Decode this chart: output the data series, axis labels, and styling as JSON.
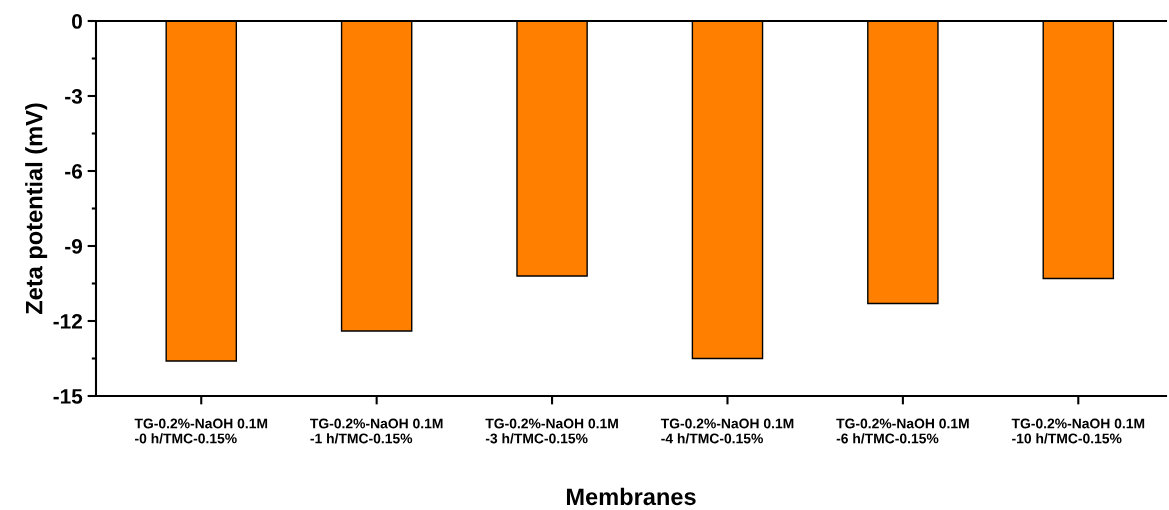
{
  "chart_data": {
    "type": "bar",
    "xlabel": "Membranes",
    "ylabel": "Zeta potential (mV)",
    "categories": [
      "TG-0.2%-NaOH 0.1M\n-0 h/TMC-0.15%",
      "TG-0.2%-NaOH 0.1M\n-1 h/TMC-0.15%",
      "TG-0.2%-NaOH 0.1M\n-3 h/TMC-0.15%",
      "TG-0.2%-NaOH 0.1M\n-4 h/TMC-0.15%",
      "TG-0.2%-NaOH 0.1M\n-6 h/TMC-0.15%",
      "TG-0.2%-NaOH 0.1M\n-10 h/TMC-0.15%"
    ],
    "values": [
      -13.6,
      -12.4,
      -10.2,
      -13.5,
      -11.3,
      -10.3
    ],
    "color": "#ff8000",
    "ylim": [
      -15,
      0
    ],
    "yticks": [
      -15,
      -12,
      -9,
      -6,
      -3,
      0
    ],
    "grid": false,
    "legend": false
  }
}
